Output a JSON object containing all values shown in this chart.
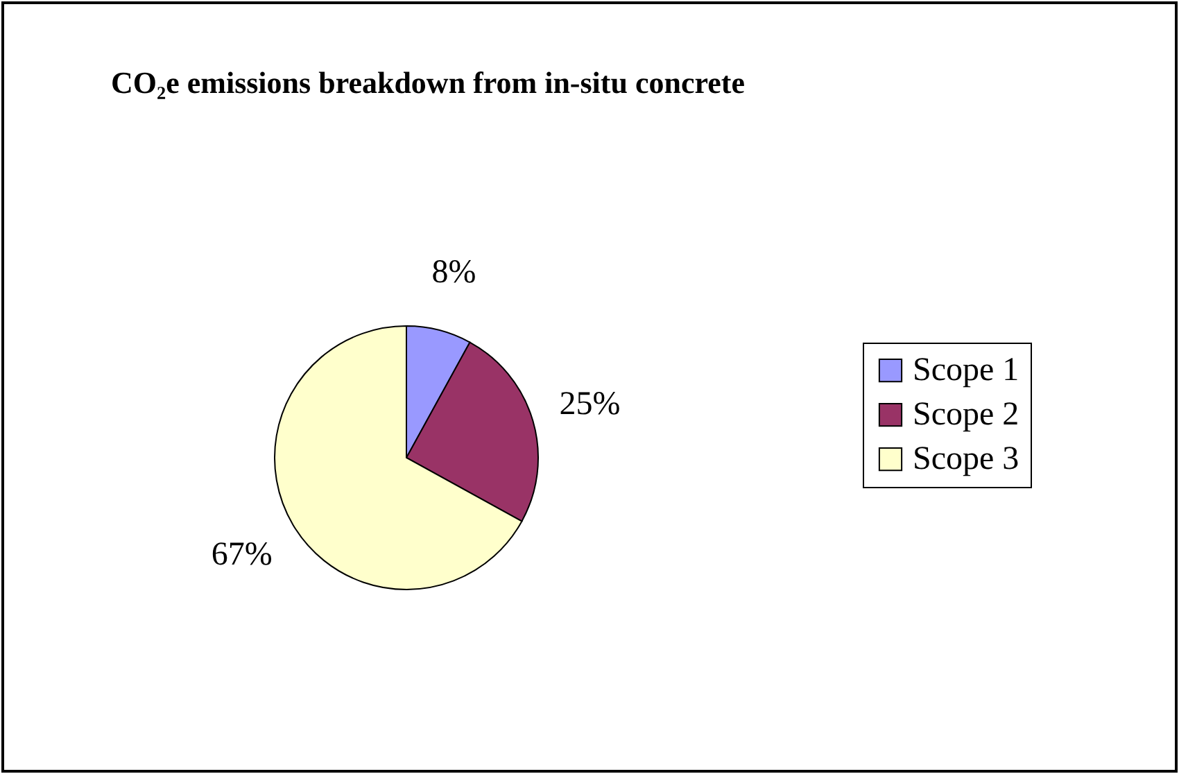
{
  "chart_data": {
    "type": "pie",
    "title": "CO₂e emissions breakdown from in-situ concrete",
    "categories": [
      "Scope 1",
      "Scope 2",
      "Scope 3"
    ],
    "values": [
      8,
      25,
      67
    ],
    "colors": [
      "#9999ff",
      "#993366",
      "#ffffcc"
    ],
    "value_labels": [
      "8%",
      "25%",
      "67%"
    ],
    "legend": "right"
  }
}
